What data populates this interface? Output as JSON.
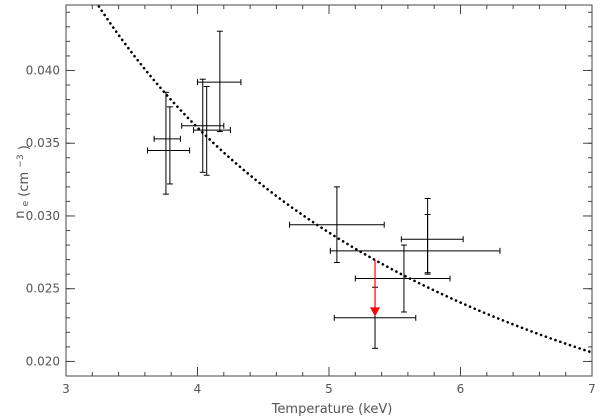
{
  "chart_data": {
    "type": "scatter",
    "xlabel": "Temperature (keV)",
    "ylabel_main": "n",
    "ylabel_sub": "e",
    "ylabel_unit_prefix": "(cm",
    "ylabel_unit_exp": "−3",
    "ylabel_unit_suffix": ")",
    "xlim": [
      3,
      7
    ],
    "ylim": [
      0.019,
      0.0445
    ],
    "x_ticks": [
      {
        "value": 3,
        "label": "3"
      },
      {
        "value": 4,
        "label": "4"
      },
      {
        "value": 5,
        "label": "5"
      },
      {
        "value": 6,
        "label": "6"
      },
      {
        "value": 7,
        "label": "7"
      }
    ],
    "y_ticks": [
      {
        "value": 0.02,
        "label": "0.020"
      },
      {
        "value": 0.025,
        "label": "0.025"
      },
      {
        "value": 0.03,
        "label": "0.030"
      },
      {
        "value": 0.035,
        "label": "0.035"
      },
      {
        "value": 0.04,
        "label": "0.040"
      }
    ],
    "x_minor_step": 0.2,
    "y_minor_step": 0.001,
    "points": [
      {
        "x": 3.76,
        "y": 0.0345,
        "xerr": [
          0.14,
          0.18
        ],
        "yerr": [
          0.003,
          0.004
        ]
      },
      {
        "x": 3.79,
        "y": 0.0353,
        "xerr": [
          0.12,
          0.08
        ],
        "yerr": [
          0.0031,
          0.0022
        ]
      },
      {
        "x": 4.04,
        "y": 0.0362,
        "xerr": [
          0.16,
          0.16
        ],
        "yerr": [
          0.0032,
          0.0032
        ]
      },
      {
        "x": 4.07,
        "y": 0.0359,
        "xerr": [
          0.1,
          0.18
        ],
        "yerr": [
          0.0031,
          0.003
        ]
      },
      {
        "x": 4.17,
        "y": 0.0392,
        "xerr": [
          0.17,
          0.16
        ],
        "yerr": [
          0.0034,
          0.0035
        ]
      },
      {
        "x": 5.06,
        "y": 0.0294,
        "xerr": [
          0.36,
          0.36
        ],
        "yerr": [
          0.0026,
          0.0026
        ]
      },
      {
        "x": 5.35,
        "y": 0.023,
        "xerr": [
          0.31,
          0.31
        ],
        "yerr": [
          0.0021,
          0.0021
        ]
      },
      {
        "x": 5.57,
        "y": 0.0257,
        "xerr": [
          0.37,
          0.35
        ],
        "yerr": [
          0.0023,
          0.0023
        ]
      },
      {
        "x": 5.75,
        "y": 0.0276,
        "xerr": [
          0.74,
          0.55
        ],
        "yerr": [
          0.0015,
          0.0025
        ]
      },
      {
        "x": 5.75,
        "y": 0.0284,
        "xerr": [
          0.2,
          0.27
        ],
        "yerr": [
          0.0024,
          0.0028
        ]
      }
    ],
    "upper_limit": {
      "x": 5.35,
      "y_from": 0.027,
      "y_to": 0.0231,
      "color": "#ff0000"
    },
    "fit_curve": {
      "form": "a/x",
      "a": 0.1443,
      "x_from": 3.0,
      "x_to": 7.0,
      "color": "#000000",
      "style": "dotted"
    },
    "grid": false,
    "legend": "none"
  }
}
